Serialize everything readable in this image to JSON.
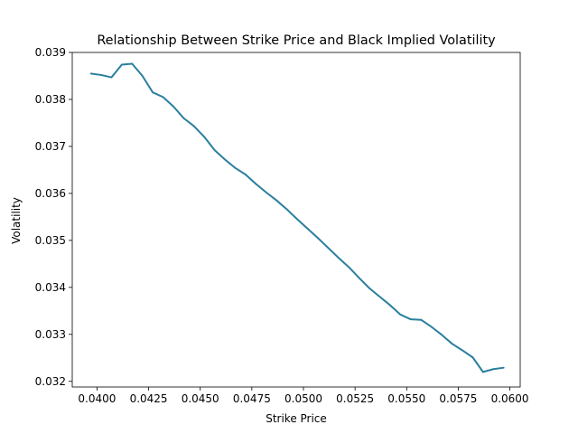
{
  "chart_data": {
    "type": "line",
    "title": "Relationship Between Strike Price and Black Implied Volatility",
    "xlabel": "Strike Price",
    "ylabel": "Volatility",
    "xlim": [
      0.0388,
      0.0605
    ],
    "ylim": [
      0.03188,
      0.039
    ],
    "grid": false,
    "xticks": [
      {
        "value": 0.04,
        "label": "0.0400"
      },
      {
        "value": 0.0425,
        "label": "0.0425"
      },
      {
        "value": 0.045,
        "label": "0.0450"
      },
      {
        "value": 0.0475,
        "label": "0.0475"
      },
      {
        "value": 0.05,
        "label": "0.0500"
      },
      {
        "value": 0.0525,
        "label": "0.0525"
      },
      {
        "value": 0.055,
        "label": "0.0550"
      },
      {
        "value": 0.0575,
        "label": "0.0575"
      },
      {
        "value": 0.06,
        "label": "0.0600"
      }
    ],
    "yticks": [
      {
        "value": 0.032,
        "label": "0.032"
      },
      {
        "value": 0.033,
        "label": "0.033"
      },
      {
        "value": 0.034,
        "label": "0.034"
      },
      {
        "value": 0.035,
        "label": "0.035"
      },
      {
        "value": 0.036,
        "label": "0.036"
      },
      {
        "value": 0.037,
        "label": "0.037"
      },
      {
        "value": 0.038,
        "label": "0.038"
      },
      {
        "value": 0.039,
        "label": "0.039"
      }
    ],
    "series": [
      {
        "color": "#2a7f9e",
        "x": [
          0.0397,
          0.0402,
          0.0407,
          0.0412,
          0.0417,
          0.0422,
          0.0427,
          0.0432,
          0.0437,
          0.0442,
          0.0447,
          0.0452,
          0.0457,
          0.0462,
          0.0467,
          0.0472,
          0.0477,
          0.0482,
          0.0487,
          0.0492,
          0.0497,
          0.0502,
          0.0507,
          0.0512,
          0.0517,
          0.0522,
          0.0527,
          0.0532,
          0.0537,
          0.0542,
          0.0547,
          0.0552,
          0.0557,
          0.0562,
          0.0567,
          0.0572,
          0.0577,
          0.0582,
          0.0587,
          0.0592,
          0.0597
        ],
        "y": [
          0.03855,
          0.03852,
          0.03847,
          0.03874,
          0.03876,
          0.0385,
          0.03815,
          0.03805,
          0.03785,
          0.0376,
          0.03743,
          0.0372,
          0.03692,
          0.03672,
          0.03654,
          0.0364,
          0.0362,
          0.03602,
          0.03585,
          0.03566,
          0.03545,
          0.03525,
          0.03505,
          0.03484,
          0.03463,
          0.03443,
          0.0342,
          0.03398,
          0.0338,
          0.03362,
          0.03342,
          0.03332,
          0.03331,
          0.03316,
          0.03299,
          0.0328,
          0.03266,
          0.03251,
          0.0322,
          0.03226,
          0.03229
        ]
      }
    ]
  }
}
